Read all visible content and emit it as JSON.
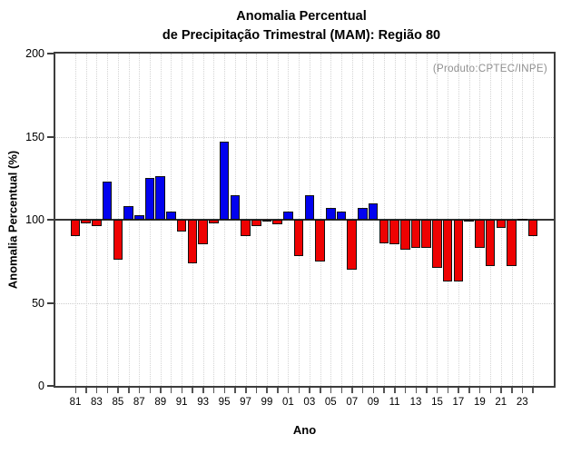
{
  "figure": {
    "title_line1": "Anomalia Percentual",
    "title_line2": "de Precipitação Trimestral (MAM): Região 80"
  },
  "chart_data": {
    "type": "bar",
    "title": "Anomalia Percentual de Precipitação Trimestral (MAM): Região 80",
    "xlabel": "Ano",
    "ylabel": "Anomalia Percentual (%)",
    "annotation": "(Produto:CPTEC/INPE)",
    "ylim": [
      0,
      200
    ],
    "yticks": [
      0,
      50,
      100,
      150,
      200
    ],
    "baseline": 100,
    "grid": {
      "h_dotted_at": [
        50,
        150
      ],
      "v_dotted_every_year": true,
      "legend_position": "none"
    },
    "colors": {
      "above_baseline": "#0202ee",
      "below_baseline": "#ee0202",
      "bar_border": "#111111",
      "baseline_line": "#333333",
      "frame": "#3d3d3d",
      "annotation_text": "#8f8f8f"
    },
    "years": [
      1981,
      1982,
      1983,
      1984,
      1985,
      1986,
      1987,
      1988,
      1989,
      1990,
      1991,
      1992,
      1993,
      1994,
      1995,
      1996,
      1997,
      1998,
      1999,
      2000,
      2001,
      2002,
      2003,
      2004,
      2005,
      2006,
      2007,
      2008,
      2009,
      2010,
      2011,
      2012,
      2013,
      2014,
      2015,
      2016,
      2017,
      2018,
      2019,
      2020,
      2021,
      2022,
      2023,
      2024
    ],
    "values": [
      90,
      98,
      96,
      123,
      76,
      108,
      103,
      125,
      126,
      105,
      93,
      74,
      85,
      98,
      147,
      115,
      90,
      96,
      99,
      97,
      105,
      78,
      115,
      75,
      107,
      105,
      70,
      107,
      110,
      86,
      85,
      82,
      83,
      83,
      71,
      63,
      63,
      99,
      83,
      72,
      95,
      72,
      100,
      90
    ],
    "xtick_labels": [
      "81",
      "83",
      "85",
      "87",
      "89",
      "91",
      "93",
      "95",
      "97",
      "99",
      "01",
      "03",
      "05",
      "07",
      "09",
      "11",
      "13",
      "15",
      "17",
      "19",
      "21",
      "23"
    ]
  }
}
